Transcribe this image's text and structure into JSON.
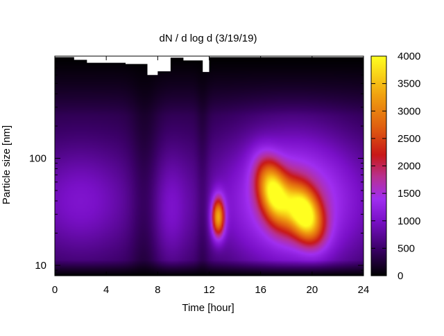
{
  "chart_data": {
    "type": "heatmap",
    "title": "dN / d log d (3/19/19)",
    "xlabel": "Time [hour]",
    "ylabel": "Particle size [nm]",
    "xlim": [
      0,
      24
    ],
    "x_ticks": [
      "0",
      "4",
      "8",
      "12",
      "16",
      "20",
      "24"
    ],
    "y_scale": "log",
    "ylim": [
      8,
      900
    ],
    "y_ticks": [
      "10",
      "100"
    ],
    "colorbar": {
      "range": [
        0,
        4000
      ],
      "ticks": [
        "0",
        "500",
        "1000",
        "1500",
        "2000",
        "2500",
        "3000",
        "3500",
        "4000"
      ],
      "palette": "black-purple-red-orange-yellow"
    },
    "upper_size_limit": [
      {
        "time": 0.0,
        "size": 880
      },
      {
        "time": 1.5,
        "size": 830
      },
      {
        "time": 2.5,
        "size": 780
      },
      {
        "time": 5.5,
        "size": 760
      },
      {
        "time": 7.2,
        "size": 600
      },
      {
        "time": 8.0,
        "size": 650
      },
      {
        "time": 9.0,
        "size": 870
      },
      {
        "time": 10.0,
        "size": 820
      },
      {
        "time": 11.5,
        "size": 640
      },
      {
        "time": 12.0,
        "size": 880
      },
      {
        "time": 24.0,
        "size": 880
      }
    ],
    "features": [
      {
        "time": 2.0,
        "size": 40,
        "value": 1100
      },
      {
        "time": 9.0,
        "size": 35,
        "value": 1050
      },
      {
        "time": 12.7,
        "size": 28,
        "value": 2900
      },
      {
        "time": 17.0,
        "size": 48,
        "value": 3300
      },
      {
        "time": 19.4,
        "size": 30,
        "value": 3700
      }
    ]
  }
}
